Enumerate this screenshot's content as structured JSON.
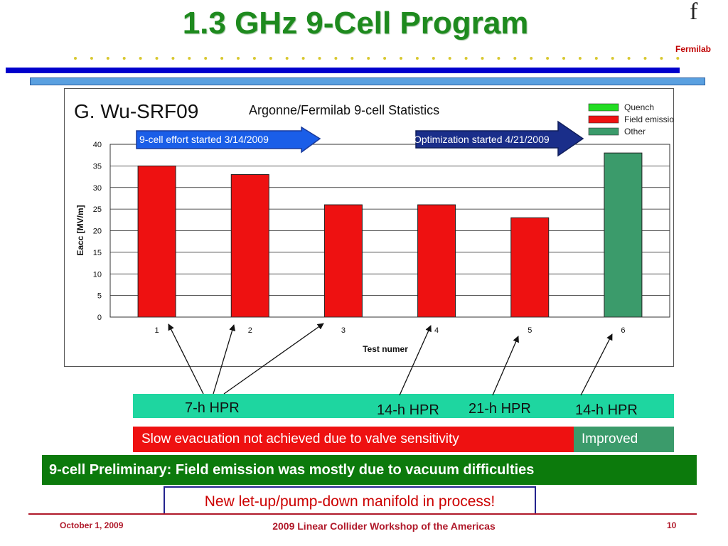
{
  "slide": {
    "title": "1.3 GHz 9-Cell Program",
    "logo_glyph": "f",
    "logo_text": "Fermilab"
  },
  "chart_data": {
    "type": "bar",
    "author_label": "G. Wu-SRF09",
    "title": "Argonne/Fermilab 9-cell Statistics",
    "xlabel": "Test numer",
    "ylabel": "Eacc [MV/m]",
    "ylim": [
      0,
      40
    ],
    "yticks": [
      "0",
      "5",
      "10",
      "15",
      "20",
      "25",
      "30",
      "35",
      "40"
    ],
    "categories": [
      "1",
      "2",
      "3",
      "4",
      "5",
      "6"
    ],
    "values": [
      35,
      33,
      26,
      26,
      23,
      38
    ],
    "bar_types": [
      "Field emission",
      "Field emission",
      "Field emission",
      "Field emission",
      "Field emission",
      "Other"
    ],
    "legend": [
      {
        "name": "Quench",
        "color": "#22dd22"
      },
      {
        "name": "Field emission",
        "color": "#ee1111"
      },
      {
        "name": "Other",
        "color": "#3b9b6b"
      }
    ],
    "legend_position": "top-right",
    "grid": true,
    "annotations": {
      "effort_start": "9-cell effort started 3/14/2009",
      "optimization_start": "Optimization started 4/21/2009"
    }
  },
  "notes": {
    "hpr_7": "7-h HPR",
    "hpr_14a": "14-h HPR",
    "hpr_21": "21-h HPR",
    "hpr_14b": "14-h HPR",
    "slow_evac": "Slow evacuation not achieved due to valve sensitivity",
    "improved": "Improved",
    "preliminary": "9-cell Preliminary: Field emission was mostly due to vacuum difficulties",
    "manifold": "New let-up/pump-down manifold in process!"
  },
  "footer": {
    "date": "October 1, 2009",
    "workshop": "2009 Linear Collider Workshop of the Americas",
    "page": "10"
  },
  "colors": {
    "title_green": "#1e8a1e",
    "field_emission": "#ee1111",
    "other": "#3b9b6b",
    "hpr_band": "#1ed6a0",
    "footer_red": "#b0192a"
  }
}
